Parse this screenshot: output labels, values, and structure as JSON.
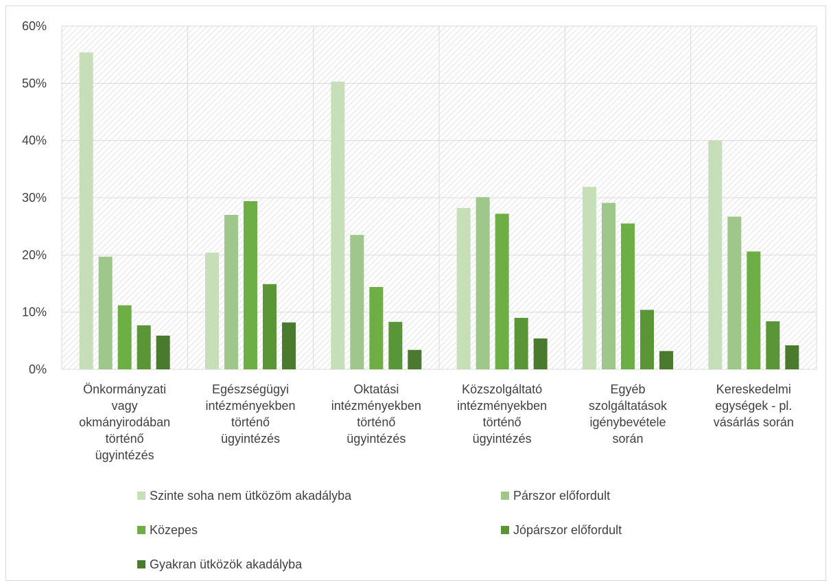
{
  "chart_data": {
    "type": "bar",
    "title": "",
    "xlabel": "",
    "ylabel": "",
    "ylim": [
      0,
      60
    ],
    "yticks": [
      "0%",
      "10%",
      "20%",
      "30%",
      "40%",
      "50%",
      "60%"
    ],
    "grid": true,
    "legend_position": "bottom",
    "categories": [
      "Önkormányzati vagy okmányirodában történő ügyintézés",
      "Egészségügyi intézményekben történő ügyintézés",
      "Oktatási intézményekben történő ügyintézés",
      "Közszolgáltató intézményekben történő ügyintézés",
      "Egyéb szolgáltatások igénybevétele során",
      "Kereskedelmi egységek - pl. vásárlás során"
    ],
    "category_lines": [
      [
        "Önkormányzati",
        "vagy",
        "okmányirodában",
        "történő",
        "ügyintézés"
      ],
      [
        "Egészségügyi",
        "intézményekben",
        "történő",
        "ügyintézés"
      ],
      [
        "Oktatási",
        "intézményekben",
        "történő",
        "ügyintézés"
      ],
      [
        "Közszolgáltató",
        "intézményekben",
        "történő",
        "ügyintézés"
      ],
      [
        "Egyéb",
        "szolgáltatások",
        "igénybevétele",
        "során"
      ],
      [
        "Kereskedelmi",
        "egységek - pl.",
        "vásárlás során"
      ]
    ],
    "series": [
      {
        "name": "Szinte soha nem ütközöm akadályba",
        "color": "#c6dfb8",
        "values": [
          55.4,
          20.4,
          50.3,
          28.2,
          31.9,
          40.0
        ]
      },
      {
        "name": "Párszor előfordult",
        "color": "#9fc78c",
        "values": [
          19.7,
          27.0,
          23.5,
          30.1,
          29.1,
          26.7
        ]
      },
      {
        "name": "Közepes",
        "color": "#6eaf45",
        "values": [
          11.2,
          29.4,
          14.4,
          27.2,
          25.5,
          20.6
        ]
      },
      {
        "name": "Jópárszor előfordult",
        "color": "#5a9538",
        "values": [
          7.7,
          14.9,
          8.3,
          9.0,
          10.4,
          8.4
        ]
      },
      {
        "name": "Gyakran ütközök akadályba",
        "color": "#4a7a2e",
        "values": [
          5.9,
          8.2,
          3.4,
          5.4,
          3.2,
          4.2
        ]
      }
    ]
  }
}
